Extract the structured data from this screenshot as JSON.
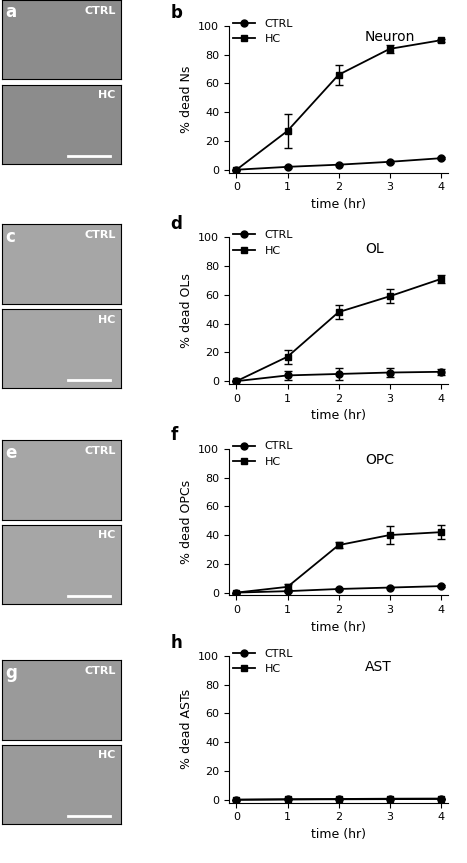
{
  "chart_data": [
    {
      "type": "line",
      "panel_label": "b",
      "title": "Neuron",
      "x_label": "time (hr)",
      "y_label": "% dead Ns",
      "x": [
        0,
        1,
        2,
        3,
        4
      ],
      "series": [
        {
          "name": "CTRL",
          "color": "#000000",
          "marker": "circle",
          "values": [
            0,
            2,
            3.5,
            5.5,
            8
          ],
          "errors": [
            0,
            0.5,
            0.5,
            0.5,
            0.5
          ]
        },
        {
          "name": "HC",
          "color": "#000000",
          "marker": "square",
          "values": [
            0,
            27,
            66,
            84,
            90
          ],
          "errors": [
            0,
            12,
            7,
            3,
            1
          ]
        }
      ],
      "xlim": [
        -0.15,
        4.15
      ],
      "ylim": [
        -2,
        100
      ],
      "xticks": [
        0,
        1,
        2,
        3,
        4
      ],
      "yticks": [
        0,
        20,
        40,
        60,
        80,
        100
      ],
      "legend": "upper left"
    },
    {
      "type": "line",
      "panel_label": "d",
      "title": "OL",
      "x_label": "time (hr)",
      "y_label": "% dead OLs",
      "x": [
        0,
        1,
        2,
        3,
        4
      ],
      "series": [
        {
          "name": "CTRL",
          "color": "#000000",
          "marker": "circle",
          "values": [
            0,
            4,
            5,
            6,
            6.5
          ],
          "errors": [
            0,
            3,
            4,
            3,
            2
          ]
        },
        {
          "name": "HC",
          "color": "#000000",
          "marker": "square",
          "values": [
            0,
            17,
            48,
            59,
            71
          ],
          "errors": [
            0,
            5,
            5,
            5,
            2.5
          ]
        }
      ],
      "xlim": [
        -0.15,
        4.15
      ],
      "ylim": [
        -2,
        100
      ],
      "xticks": [
        0,
        1,
        2,
        3,
        4
      ],
      "yticks": [
        0,
        20,
        40,
        60,
        80,
        100
      ],
      "legend": "upper left"
    },
    {
      "type": "line",
      "panel_label": "f",
      "title": "OPC",
      "x_label": "time (hr)",
      "y_label": "% dead OPCs",
      "x": [
        0,
        1,
        2,
        3,
        4
      ],
      "series": [
        {
          "name": "CTRL",
          "color": "#000000",
          "marker": "circle",
          "values": [
            0,
            1,
            2.5,
            3.5,
            4.5
          ],
          "errors": [
            0,
            0.5,
            0.5,
            0.5,
            0.5
          ]
        },
        {
          "name": "HC",
          "color": "#000000",
          "marker": "square",
          "values": [
            0,
            4,
            33,
            40,
            42
          ],
          "errors": [
            0,
            2,
            2,
            6,
            5
          ]
        }
      ],
      "xlim": [
        -0.15,
        4.15
      ],
      "ylim": [
        -2,
        100
      ],
      "xticks": [
        0,
        1,
        2,
        3,
        4
      ],
      "yticks": [
        0,
        20,
        40,
        60,
        80,
        100
      ],
      "legend": "upper left"
    },
    {
      "type": "line",
      "panel_label": "h",
      "title": "AST",
      "x_label": "time (hr)",
      "y_label": "% dead ASTs",
      "x": [
        0,
        1,
        2,
        3,
        4
      ],
      "series": [
        {
          "name": "CTRL",
          "color": "#000000",
          "marker": "circle",
          "values": [
            0,
            0.2,
            0.3,
            0.4,
            0.5
          ],
          "errors": [
            0,
            0,
            0,
            0,
            0
          ]
        },
        {
          "name": "HC",
          "color": "#000000",
          "marker": "square",
          "values": [
            0,
            0.3,
            0.5,
            0.7,
            0.8
          ],
          "errors": [
            0,
            0,
            0,
            0,
            0
          ]
        }
      ],
      "xlim": [
        -0.15,
        4.15
      ],
      "ylim": [
        -2,
        100
      ],
      "xticks": [
        0,
        1,
        2,
        3,
        4
      ],
      "yticks": [
        0,
        20,
        40,
        60,
        80,
        100
      ],
      "legend": "upper left"
    }
  ],
  "images": [
    {
      "panel_label": "a",
      "labels": [
        "CTRL",
        "HC"
      ]
    },
    {
      "panel_label": "c",
      "labels": [
        "CTRL",
        "HC"
      ]
    },
    {
      "panel_label": "e",
      "labels": [
        "CTRL",
        "HC"
      ]
    },
    {
      "panel_label": "g",
      "labels": [
        "CTRL",
        "HC"
      ]
    }
  ]
}
